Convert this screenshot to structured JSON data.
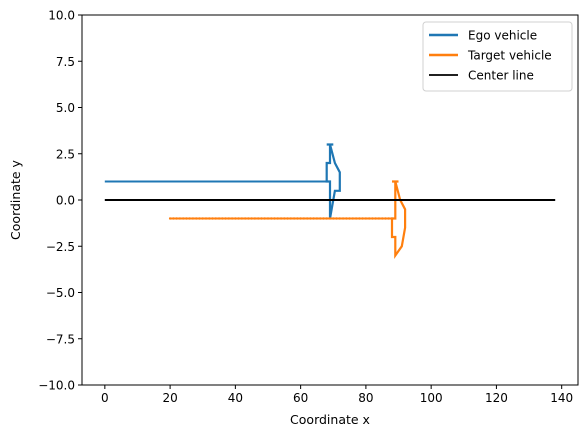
{
  "chart_data": {
    "type": "line",
    "xlabel": "Coordinate x",
    "ylabel": "Coordinate y",
    "xlim": [
      -7,
      145
    ],
    "ylim": [
      -10,
      10
    ],
    "xticks": [
      {
        "value": 0,
        "label": "0"
      },
      {
        "value": 20,
        "label": "20"
      },
      {
        "value": 40,
        "label": "40"
      },
      {
        "value": 60,
        "label": "60"
      },
      {
        "value": 80,
        "label": "80"
      },
      {
        "value": 100,
        "label": "100"
      },
      {
        "value": 120,
        "label": "120"
      },
      {
        "value": 140,
        "label": "140"
      }
    ],
    "yticks": [
      {
        "value": 10,
        "label": "10.0"
      },
      {
        "value": 7.5,
        "label": "7.5"
      },
      {
        "value": 5,
        "label": "5.0"
      },
      {
        "value": 2.5,
        "label": "2.5"
      },
      {
        "value": 0,
        "label": "0.0"
      },
      {
        "value": -2.5,
        "label": "−2.5"
      },
      {
        "value": -5,
        "label": "−5.0"
      },
      {
        "value": -7.5,
        "label": "−7.5"
      },
      {
        "value": -10,
        "label": "−10.0"
      }
    ],
    "grid": false,
    "legend_position": "top-right",
    "series": [
      {
        "name": "Ego vehicle",
        "color": "#1f77b4",
        "x": [
          0,
          68.3
        ],
        "y": [
          1.0,
          1.0
        ],
        "outline": {
          "x": [
            69.0,
            69.0,
            68.0,
            68.0,
            69.0,
            69.0,
            70.5,
            72.0,
            72.0,
            70.5,
            69.0,
            69.0,
            68.0,
            70.0
          ],
          "y": [
            3.0,
            2.0,
            2.0,
            1.0,
            1.0,
            -1.0,
            0.5,
            0.5,
            1.5,
            2.0,
            3.0,
            3.0,
            3.0,
            3.0
          ]
        }
      },
      {
        "name": "Target vehicle",
        "color": "#ff7f0e",
        "x": [
          20,
          88.3
        ],
        "y": [
          -1.0,
          -1.0
        ],
        "outline": {
          "x": [
            89.0,
            89.0,
            88.0,
            88.0,
            89.0,
            89.0,
            91.0,
            92.0,
            92.0,
            90.5,
            89.0,
            89.0,
            88.0,
            90.0
          ],
          "y": [
            1.0,
            -1.0,
            -1.0,
            -2.0,
            -2.0,
            -3.0,
            -2.5,
            -1.5,
            -0.5,
            0.0,
            1.0,
            1.0,
            1.0,
            1.0
          ]
        }
      },
      {
        "name": "Center line",
        "color": "#000000",
        "x": [
          0,
          138
        ],
        "y": [
          0,
          0
        ]
      }
    ]
  }
}
